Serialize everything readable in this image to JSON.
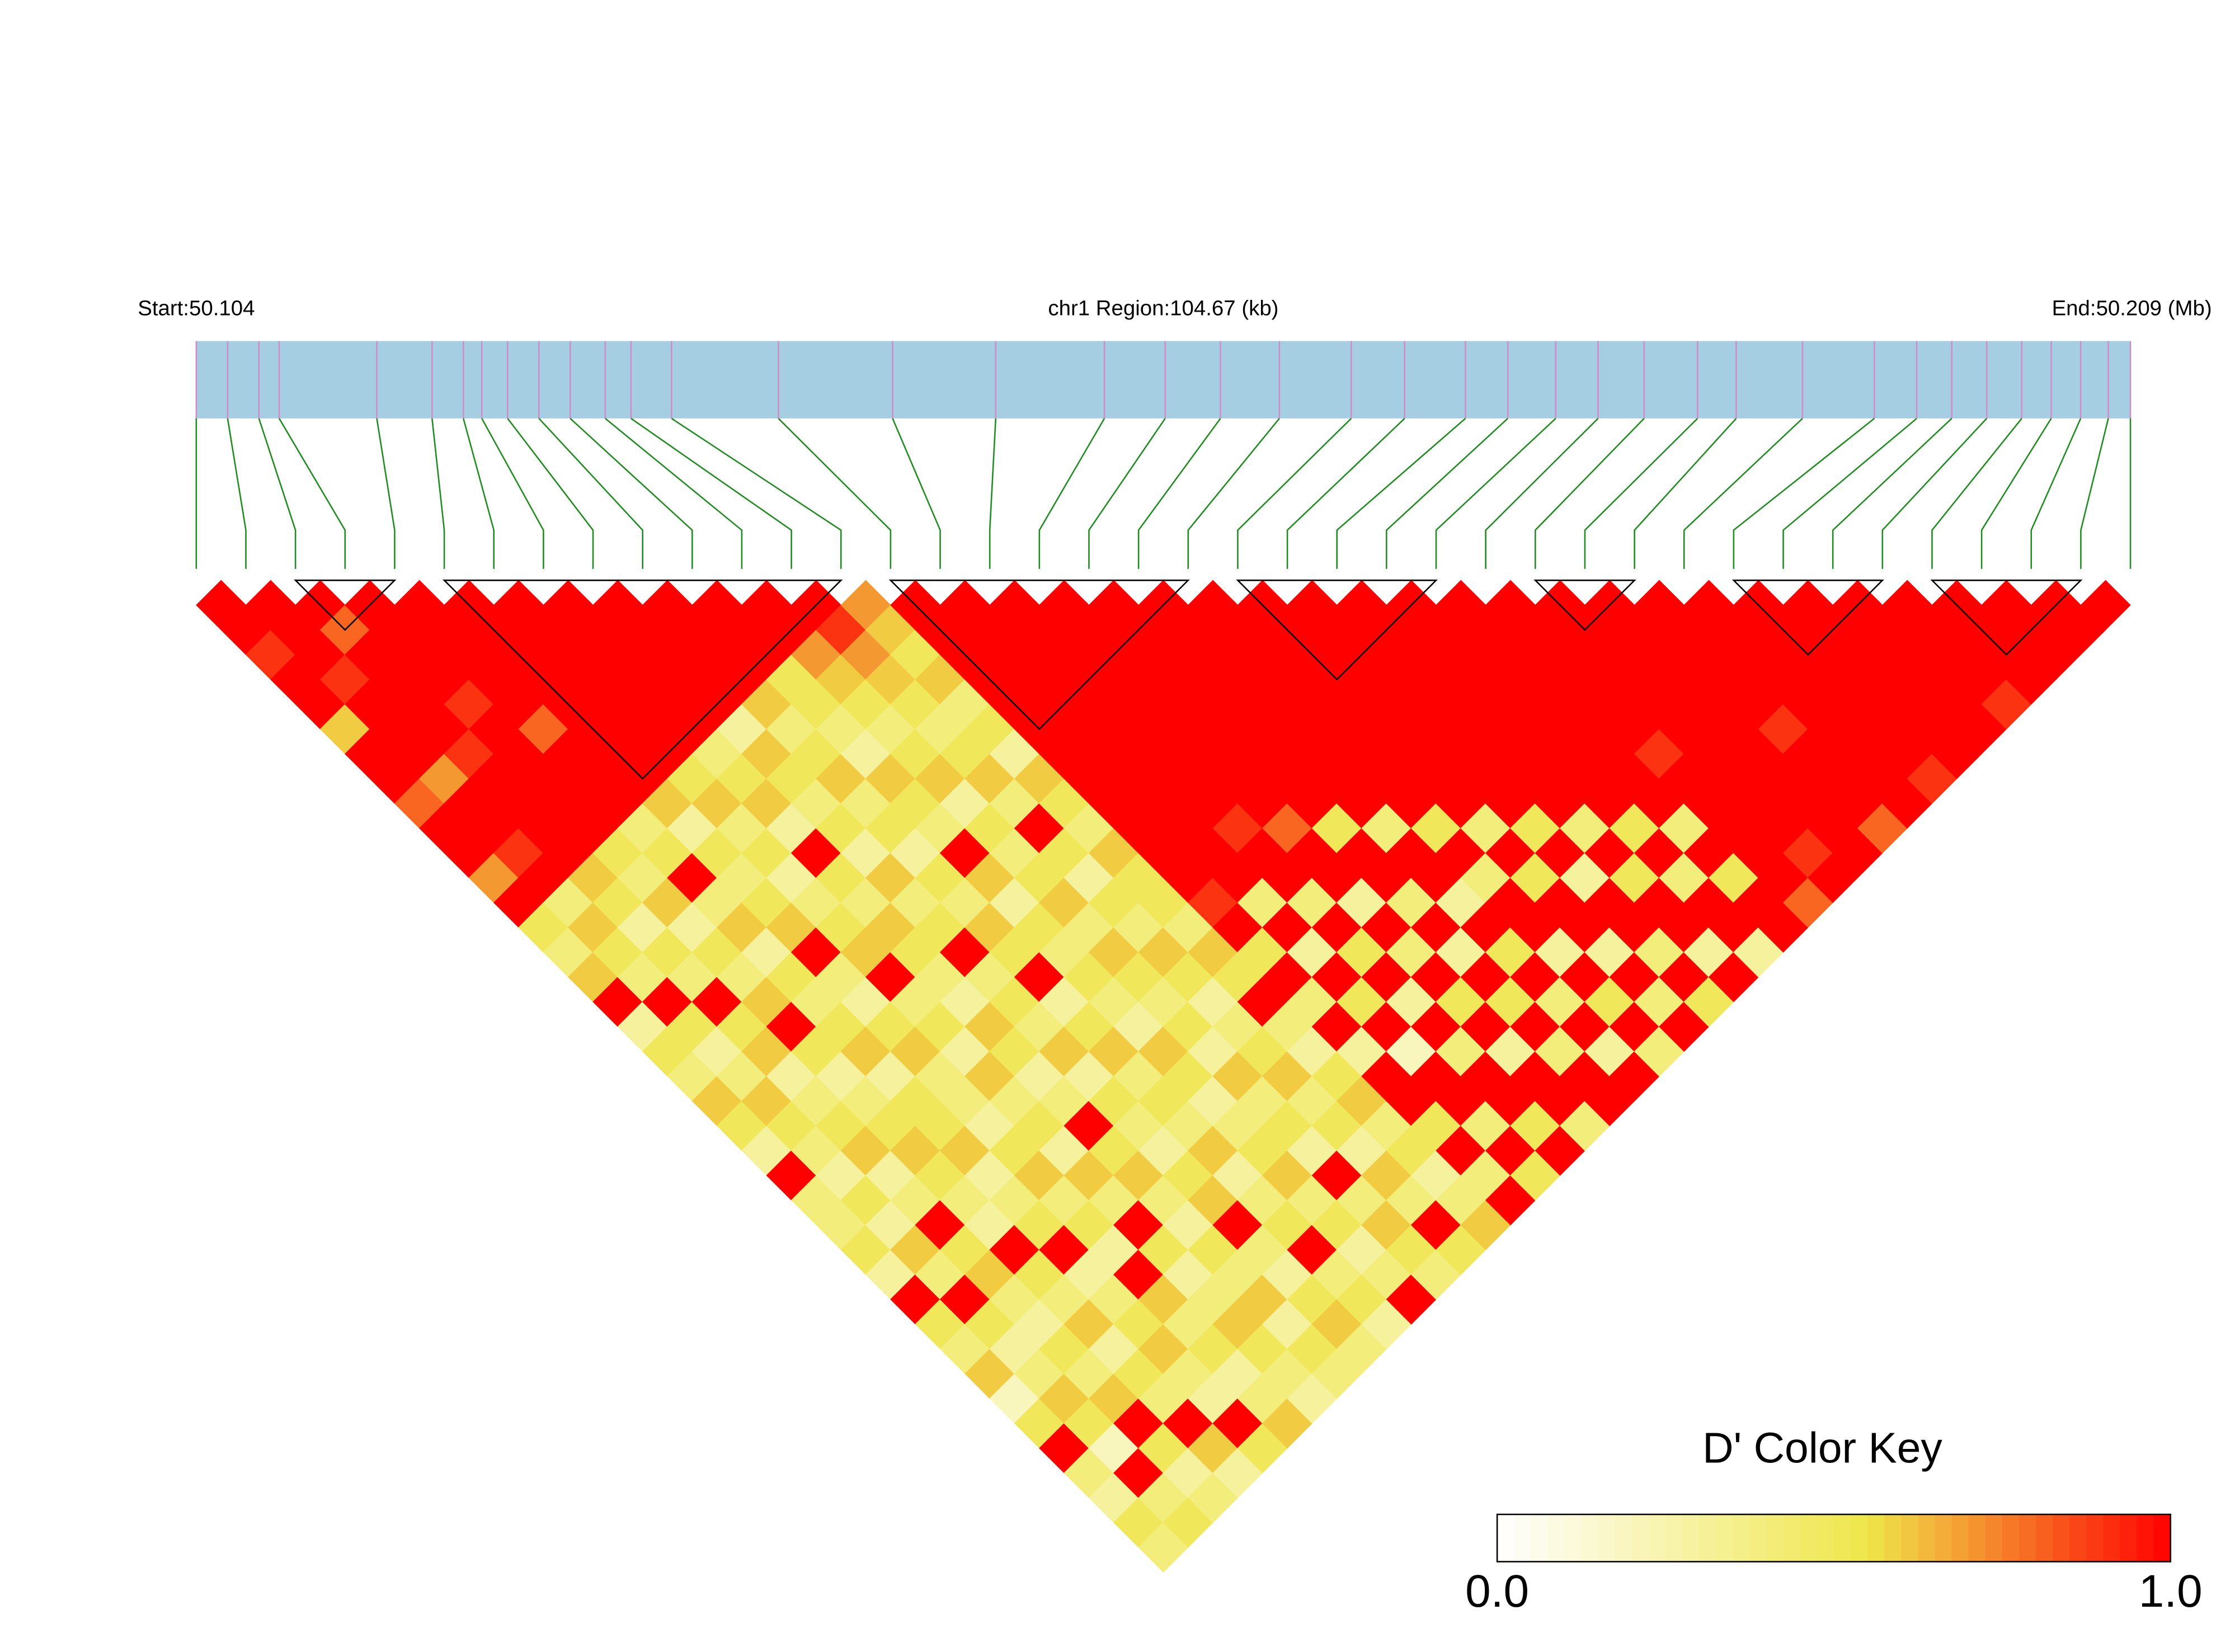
{
  "chart_data": {
    "type": "ld_heatmap",
    "start_label": "Start:50.104",
    "region_label": "chr1 Region:104.67 (kb)",
    "end_label": "End:50.209 (Mb)",
    "key_title": "D' Color Key",
    "xlim": [
      50.104,
      50.209
    ],
    "positions": [
      50.104,
      50.1057,
      50.1074,
      50.1085,
      50.1138,
      50.1168,
      50.1185,
      50.1195,
      50.1209,
      50.1226,
      50.1243,
      50.1262,
      50.1276,
      50.1298,
      50.1356,
      50.1418,
      50.1474,
      50.1533,
      50.1566,
      50.1596,
      50.1628,
      50.1667,
      50.1696,
      50.1729,
      50.1752,
      50.1778,
      50.1801,
      50.1826,
      50.1855,
      50.1876,
      50.1912,
      50.1951,
      50.1974,
      50.1993,
      50.2012,
      50.2031,
      50.2047,
      50.2063,
      50.2078,
      50.209
    ],
    "marker_color": "#d08cc8",
    "bar_color": "#a6cee3",
    "connector_color": "#1e8c1e",
    "block_color": "#000000",
    "colors": [
      "#ffffff",
      "#efe64a",
      "#ff0000"
    ],
    "key_lim": [
      0,
      1
    ],
    "key_ticks": [
      {
        "value": 0,
        "label": "0.0"
      },
      {
        "value": 1,
        "label": "1.0"
      }
    ],
    "blocks": [
      [
        2,
        4
      ],
      [
        5,
        13
      ],
      [
        14,
        20
      ],
      [
        21,
        25
      ],
      [
        27,
        29
      ],
      [
        31,
        34
      ],
      [
        35,
        38
      ]
    ],
    "dprime": [
      [
        1,
        1,
        0.9,
        1,
        1,
        0.6,
        1,
        1,
        0.8,
        1,
        1,
        0.7,
        1,
        0.5,
        0.4,
        0.6,
        1,
        0.3,
        0.5,
        0.4,
        0.6,
        0.5,
        0.3,
        1,
        0.4,
        0.4,
        0.5,
        0.3,
        1,
        0.5,
        0.4,
        0.6,
        0.2,
        0.5,
        1,
        0.4,
        0.3,
        0.5,
        0.4
      ],
      [
        1,
        1,
        1,
        0.9,
        1,
        1,
        1,
        0.7,
        1,
        1,
        0.9,
        1,
        0.4,
        0.6,
        0.5,
        0.4,
        1,
        0.5,
        0.3,
        0.4,
        0.6,
        0.5,
        0.4,
        0.3,
        0.5,
        0.3,
        0.6,
        0.4,
        1,
        0.5,
        0.3,
        0.4,
        0.6,
        0.5,
        0.2,
        1,
        0.4,
        0.5
      ],
      [
        1,
        0.8,
        1,
        1,
        1,
        1,
        0.9,
        1,
        1,
        1,
        1,
        0.6,
        0.5,
        0.3,
        0.5,
        0.4,
        1,
        0.5,
        0.6,
        0.3,
        0.4,
        0.5,
        0.6,
        0.3,
        0.4,
        1,
        0.5,
        0.6,
        0.4,
        0.3,
        0.5,
        0.4,
        0.6,
        1,
        0.5,
        0.3,
        0.4
      ],
      [
        1,
        1,
        1,
        1,
        0.9,
        1,
        1,
        1,
        1,
        1,
        0.5,
        0.4,
        0.6,
        0.3,
        0.5,
        0.4,
        0.6,
        1,
        0.5,
        0.3,
        0.4,
        0.5,
        0.6,
        0.5,
        0.4,
        0.3,
        1,
        0.5,
        0.4,
        0.6,
        0.3,
        0.5,
        0.4,
        1,
        0.6,
        0.3
      ],
      [
        1,
        1,
        1,
        1,
        1,
        0.8,
        1,
        1,
        1,
        0.4,
        0.5,
        1,
        0.4,
        0.6,
        0.3,
        0.5,
        0.4,
        0.5,
        0.6,
        0.3,
        0.5,
        0.5,
        0.6,
        0.3,
        0.4,
        0.5,
        1,
        0.3,
        0.4,
        0.5,
        0.6,
        0.4,
        0.3,
        1,
        0.5
      ],
      [
        1,
        1,
        1,
        1,
        1,
        1,
        1,
        1,
        0.6,
        0.3,
        0.5,
        0.4,
        0.5,
        0.6,
        1,
        0.4,
        0.3,
        0.5,
        0.6,
        0.4,
        0.4,
        0.3,
        0.5,
        0.6,
        0.4,
        0.5,
        0.3,
        1,
        0.6,
        0.4,
        0.5,
        0.3,
        0.4,
        0.6
      ],
      [
        1,
        1,
        1,
        1,
        1,
        1,
        1,
        0.5,
        0.6,
        0.4,
        0.5,
        0.3,
        0.4,
        0.5,
        0.6,
        1,
        0.4,
        0.5,
        0.3,
        0.6,
        0.4,
        0.5,
        0.3,
        0.6,
        0.4,
        1,
        0.5,
        0.3,
        0.4,
        0.6,
        0.5,
        0.4,
        0.3
      ],
      [
        1,
        1,
        1,
        1,
        1,
        1,
        0.4,
        0.5,
        0.6,
        0.3,
        1,
        0.5,
        0.4,
        0.6,
        0.5,
        0.4,
        0.3,
        0.6,
        0.5,
        0.3,
        0.4,
        1,
        0.5,
        0.6,
        0.4,
        0.3,
        0.5,
        0.4,
        0.6,
        0.3,
        0.5,
        0.4
      ],
      [
        1,
        1,
        1,
        1,
        1,
        0.3,
        0.6,
        0.5,
        0.4,
        0.5,
        0.3,
        0.6,
        0.4,
        0.5,
        1,
        0.4,
        0.5,
        0.4,
        0.6,
        0.3,
        0.5,
        0.4,
        0.3,
        0.5,
        0.6,
        1,
        0.4,
        0.3,
        0.5,
        0.6,
        0.4
      ],
      [
        1,
        1,
        1,
        1,
        0.6,
        0.4,
        0.5,
        0.6,
        0.4,
        0.5,
        0.3,
        0.5,
        0.4,
        0.6,
        0.5,
        1,
        0.3,
        0.5,
        0.6,
        0.4,
        0.5,
        0.4,
        0.6,
        0.3,
        0.4,
        0.5,
        1,
        0.4,
        0.5,
        0.3
      ],
      [
        1,
        1,
        1,
        0.5,
        0.5,
        0.4,
        0.3,
        0.6,
        0.5,
        0.4,
        1,
        0.6,
        0.3,
        0.5,
        0.4,
        0.5,
        0.4,
        0.3,
        0.6,
        0.5,
        0.3,
        0.4,
        0.5,
        0.6,
        0.4,
        0.5,
        0.3,
        0.4,
        1
      ],
      [
        1,
        1,
        0.7,
        0.6,
        0.5,
        0.4,
        0.5,
        0.6,
        0.3,
        0.5,
        0.4,
        0.5,
        0.6,
        0.4,
        0.6,
        0.5,
        0.4,
        0.5,
        0.3,
        0.6,
        0.4,
        0.5,
        0.3,
        1,
        0.4,
        0.6,
        0.5,
        0.4
      ],
      [
        1,
        0.9,
        0.7,
        0.6,
        0.5,
        0.4,
        0.5,
        0.6,
        0.4,
        1,
        0.5,
        0.3,
        0.5,
        0.4,
        0.6,
        0.5,
        0.3,
        0.4,
        0.5,
        0.6,
        0.4,
        0.5,
        0.3,
        0.6,
        0.4,
        1,
        0.5
      ],
      [
        0.7,
        0.6,
        0.5,
        0.6,
        0.4,
        0.5,
        0.3,
        0.6,
        0.5,
        0.4,
        0.6,
        0.5,
        0.5,
        0.4,
        0.6,
        0.5,
        1,
        0.4,
        0.3,
        0.5,
        0.6,
        0.4,
        0.5,
        0.3,
        0.4,
        0.6
      ],
      [
        1,
        1,
        1,
        1,
        1,
        1,
        1,
        1,
        1,
        1,
        1,
        1,
        0.9,
        1,
        0.5,
        1,
        0.4,
        1,
        0.3,
        1,
        1,
        0.5,
        1,
        0.4,
        1
      ],
      [
        1,
        1,
        1,
        1,
        1,
        1,
        1,
        1,
        1,
        1,
        1,
        1,
        0.4,
        1,
        0.3,
        1,
        0.5,
        1,
        0.2,
        1,
        1,
        0.4,
        1,
        0.5
      ],
      [
        1,
        1,
        1,
        1,
        1,
        1,
        1,
        1,
        1,
        0.9,
        1,
        1,
        0.4,
        1,
        0.5,
        1,
        0.3,
        1,
        0.4,
        1,
        1,
        0.5,
        1
      ],
      [
        1,
        1,
        1,
        1,
        1,
        1,
        1,
        1,
        1,
        0.8,
        1,
        1,
        0.3,
        1,
        0.4,
        1,
        0.5,
        1,
        0.3,
        1,
        1,
        0.4
      ],
      [
        1,
        1,
        1,
        1,
        1,
        1,
        1,
        1,
        1,
        0.5,
        1,
        1,
        0.4,
        1,
        0.3,
        1,
        0.5,
        1,
        0.4,
        1,
        1
      ],
      [
        1,
        1,
        1,
        1,
        1,
        1,
        1,
        1,
        1,
        0.4,
        1,
        1,
        0.3,
        1,
        0.5,
        1,
        0.4,
        1,
        0.3,
        1
      ],
      [
        1,
        1,
        1,
        1,
        1,
        1,
        1,
        1,
        1,
        0.5,
        1,
        0.4,
        1,
        1,
        0.3,
        1,
        0.5,
        1,
        0.4
      ],
      [
        1,
        1,
        1,
        1,
        1,
        1,
        1,
        1,
        1,
        0.4,
        1,
        0.5,
        1,
        1,
        0.3,
        1,
        0.4,
        1
      ],
      [
        1,
        1,
        1,
        1,
        1,
        1,
        1,
        1,
        1,
        0.5,
        1,
        0.3,
        1,
        1,
        0.4,
        1,
        0.5
      ],
      [
        1,
        1,
        1,
        1,
        1,
        1,
        1,
        1,
        1,
        0.4,
        1,
        0.5,
        1,
        1,
        0.3,
        1
      ],
      [
        1,
        1,
        1,
        1,
        1,
        1,
        1,
        1,
        1,
        0.5,
        1,
        0.4,
        1,
        1,
        0.3
      ],
      [
        1,
        1,
        1,
        1,
        1,
        1,
        1,
        1,
        1,
        0.4,
        1,
        0.5,
        1,
        1
      ],
      [
        1,
        1,
        1,
        1,
        1,
        1,
        0.9,
        1,
        1,
        1,
        1,
        1,
        0.8
      ],
      [
        1,
        1,
        1,
        1,
        1,
        1,
        1,
        1,
        1,
        1,
        0.9,
        1
      ],
      [
        1,
        1,
        1,
        1,
        1,
        1,
        1,
        1,
        1,
        1,
        1
      ],
      [
        1,
        1,
        1,
        1,
        1,
        0.9,
        1,
        1,
        1,
        0.8
      ],
      [
        1,
        1,
        1,
        1,
        1,
        1,
        1,
        1,
        1
      ],
      [
        1,
        1,
        1,
        1,
        1,
        1,
        1,
        0.9
      ],
      [
        1,
        1,
        1,
        1,
        1,
        1,
        1
      ],
      [
        1,
        1,
        1,
        1,
        1,
        1
      ],
      [
        1,
        1,
        1,
        1,
        0.9
      ],
      [
        1,
        1,
        1,
        1
      ],
      [
        1,
        1,
        1
      ],
      [
        1,
        1
      ],
      [
        1
      ]
    ]
  }
}
